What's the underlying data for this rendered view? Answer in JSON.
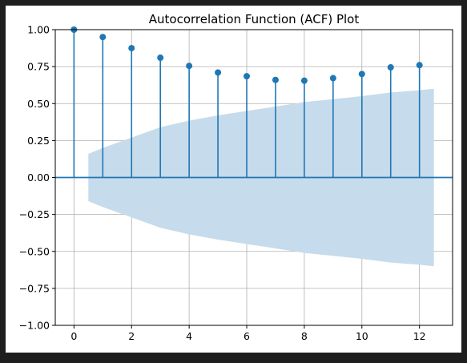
{
  "chart_data": {
    "type": "stem",
    "title": "Autocorrelation Function (ACF) Plot",
    "xlabel": "",
    "ylabel": "",
    "xlim": [
      -0.65,
      13.15
    ],
    "ylim": [
      -1.0,
      1.0
    ],
    "xticks": [
      0,
      2,
      4,
      6,
      8,
      10,
      12
    ],
    "xtick_labels": [
      "0",
      "2",
      "4",
      "6",
      "8",
      "10",
      "12"
    ],
    "yticks": [
      -1.0,
      -0.75,
      -0.5,
      -0.25,
      0.0,
      0.25,
      0.5,
      0.75,
      1.0
    ],
    "ytick_labels": [
      "−1.00",
      "−0.75",
      "−0.50",
      "−0.25",
      "0.00",
      "0.25",
      "0.50",
      "0.75",
      "1.00"
    ],
    "grid": true,
    "lags": [
      0,
      1,
      2,
      3,
      4,
      5,
      6,
      7,
      8,
      9,
      10,
      11,
      12
    ],
    "acf": [
      1.0,
      0.95,
      0.875,
      0.81,
      0.755,
      0.71,
      0.685,
      0.66,
      0.655,
      0.672,
      0.7,
      0.745,
      0.76
    ],
    "confidence_band": {
      "x": [
        0.5,
        1,
        2,
        3,
        4,
        5,
        6,
        7,
        8,
        9,
        10,
        11,
        12,
        12.5
      ],
      "upper": [
        0.16,
        0.2,
        0.27,
        0.34,
        0.385,
        0.42,
        0.45,
        0.48,
        0.51,
        0.53,
        0.55,
        0.575,
        0.59,
        0.6
      ]
    },
    "colors": {
      "stem": "#1f77b4",
      "band": "#c6dbeb",
      "grid": "#b0b0b0",
      "axis": "#000000"
    }
  }
}
